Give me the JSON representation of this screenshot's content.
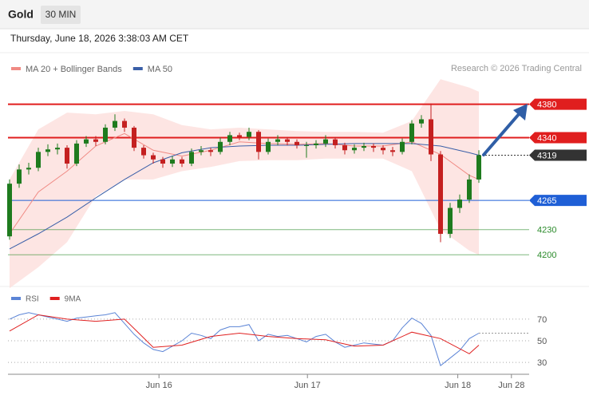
{
  "header": {
    "symbol": "Gold",
    "interval": "30 MIN",
    "timestamp": "Thursday, June 18, 2026 3:38:03 AM CET",
    "copyright": "Research © 2026 Trading Central"
  },
  "chart_data": [
    {
      "type": "candlestick",
      "x": [
        0,
        1,
        2,
        3,
        4,
        5,
        6,
        7,
        8,
        9,
        10,
        11,
        12,
        13,
        14,
        15,
        16,
        17,
        18,
        19,
        20,
        21,
        22,
        23,
        24,
        25,
        26,
        27,
        28,
        29,
        30,
        31,
        32,
        33,
        34,
        35,
        36,
        37,
        38,
        39,
        40,
        41,
        42,
        43,
        44,
        45,
        46,
        47,
        48,
        49
      ],
      "open": [
        4222,
        4285,
        4302,
        4304,
        4323,
        4326,
        4328,
        4309,
        4333,
        4338,
        4335,
        4352,
        4360,
        4352,
        4328,
        4319,
        4314,
        4309,
        4314,
        4309,
        4323,
        4325,
        4323,
        4335,
        4343,
        4341,
        4347,
        4323,
        4335,
        4338,
        4335,
        4331,
        4331,
        4333,
        4338,
        4331,
        4325,
        4328,
        4330,
        4328,
        4325,
        4323,
        4335,
        4357,
        4362,
        4320,
        4225,
        4256,
        4266,
        4290
      ],
      "high": [
        4290,
        4308,
        4310,
        4328,
        4332,
        4333,
        4331,
        4337,
        4342,
        4342,
        4356,
        4368,
        4363,
        4354,
        4331,
        4322,
        4317,
        4318,
        4317,
        4327,
        4330,
        4328,
        4340,
        4347,
        4346,
        4352,
        4349,
        4339,
        4343,
        4341,
        4338,
        4335,
        4337,
        4343,
        4341,
        4334,
        4332,
        4334,
        4333,
        4331,
        4329,
        4339,
        4361,
        4367,
        4381,
        4324,
        4262,
        4272,
        4296,
        4325
      ],
      "low": [
        4218,
        4280,
        4296,
        4300,
        4318,
        4320,
        4303,
        4306,
        4329,
        4330,
        4332,
        4348,
        4347,
        4324,
        4315,
        4309,
        4304,
        4305,
        4305,
        4306,
        4319,
        4318,
        4320,
        4331,
        4337,
        4337,
        4314,
        4320,
        4331,
        4331,
        4327,
        4316,
        4327,
        4329,
        4327,
        4320,
        4321,
        4324,
        4323,
        4320,
        4318,
        4320,
        4332,
        4352,
        4312,
        4215,
        4220,
        4250,
        4262,
        4286
      ],
      "close": [
        4285,
        4302,
        4304,
        4323,
        4326,
        4328,
        4309,
        4333,
        4338,
        4335,
        4352,
        4360,
        4352,
        4328,
        4319,
        4314,
        4309,
        4314,
        4309,
        4323,
        4325,
        4323,
        4335,
        4343,
        4341,
        4347,
        4323,
        4335,
        4338,
        4335,
        4331,
        4331,
        4333,
        4338,
        4331,
        4325,
        4328,
        4330,
        4328,
        4325,
        4323,
        4335,
        4357,
        4362,
        4320,
        4225,
        4256,
        4266,
        4290,
        4319
      ],
      "up_color": "#1e7b1e",
      "down_color": "#c42020",
      "xlim": [
        0,
        54
      ],
      "ylim": [
        4163,
        4414
      ],
      "series": [
        {
          "name": "MA 20 + Bollinger Bands",
          "color": "#f08a84",
          "band_color": "#fcdcda",
          "x": [
            0,
            3,
            6,
            9,
            12,
            15,
            18,
            21,
            24,
            27,
            30,
            33,
            36,
            39,
            42,
            45,
            48,
            49
          ],
          "values": [
            4225,
            4275,
            4300,
            4330,
            4345,
            4325,
            4318,
            4325,
            4335,
            4333,
            4332,
            4333,
            4330,
            4330,
            4335,
            4320,
            4295,
            4290
          ],
          "upper": [
            4290,
            4350,
            4370,
            4368,
            4372,
            4368,
            4355,
            4350,
            4352,
            4350,
            4348,
            4347,
            4347,
            4346,
            4360,
            4410,
            4400,
            4395
          ],
          "lower": [
            4160,
            4185,
            4215,
            4270,
            4290,
            4290,
            4300,
            4305,
            4312,
            4313,
            4313,
            4315,
            4315,
            4315,
            4300,
            4230,
            4205,
            4200
          ]
        },
        {
          "name": "MA 50",
          "color": "#3a5fa8",
          "x": [
            0,
            3,
            6,
            9,
            12,
            15,
            18,
            21,
            24,
            27,
            30,
            33,
            36,
            39,
            42,
            45,
            48,
            49
          ],
          "values": [
            4207,
            4225,
            4245,
            4268,
            4290,
            4310,
            4322,
            4328,
            4330,
            4331,
            4331,
            4332,
            4333,
            4333,
            4333,
            4330,
            4322,
            4319
          ]
        }
      ],
      "levels": [
        {
          "value": 4380,
          "color": "#e01e1e",
          "box": true,
          "line": "solid"
        },
        {
          "value": 4340,
          "color": "#e01e1e",
          "box": true,
          "line": "solid"
        },
        {
          "value": 4319,
          "color": "#333333",
          "box": true,
          "line": "dotted"
        },
        {
          "value": 4265,
          "color": "#1f5fd6",
          "box": true,
          "line": "solid"
        },
        {
          "value": 4230,
          "color": "#2a8a2a",
          "box": false,
          "line": "solid"
        },
        {
          "value": 4200,
          "color": "#2a8a2a",
          "box": false,
          "line": "solid"
        }
      ]
    },
    {
      "type": "line",
      "xlim": [
        0,
        54
      ],
      "ylim": [
        22,
        81
      ],
      "yticks": [
        70,
        50,
        30
      ],
      "grid": true,
      "xticks": [
        {
          "value": 15.6,
          "label": "Jun 16"
        },
        {
          "value": 31.1,
          "label": "Jun 17"
        },
        {
          "value": 46.8,
          "label": "Jun 18"
        },
        {
          "value": 52.4,
          "label": "Jun 28"
        }
      ],
      "series": [
        {
          "name": "RSI",
          "color": "#5b84d6",
          "x": [
            0,
            1,
            2,
            3,
            4,
            5,
            6,
            7,
            8,
            9,
            10,
            11,
            12,
            13,
            14,
            15,
            16,
            17,
            18,
            19,
            20,
            21,
            22,
            23,
            24,
            25,
            26,
            27,
            28,
            29,
            30,
            31,
            32,
            33,
            34,
            35,
            36,
            37,
            38,
            39,
            40,
            41,
            42,
            43,
            44,
            45,
            46,
            47,
            48,
            49
          ],
          "values": [
            70,
            74,
            76,
            74,
            72,
            70,
            68,
            71,
            72,
            73,
            74,
            76,
            66,
            56,
            48,
            42,
            40,
            45,
            50,
            57,
            55,
            52,
            60,
            63,
            63,
            65,
            50,
            56,
            54,
            55,
            52,
            49,
            54,
            56,
            49,
            44,
            46,
            48,
            47,
            46,
            50,
            62,
            71,
            66,
            55,
            27,
            34,
            41,
            52,
            57
          ]
        },
        {
          "name": "9MA",
          "color": "#e02020",
          "x": [
            0,
            3,
            6,
            9,
            12,
            15,
            18,
            21,
            24,
            27,
            30,
            33,
            36,
            39,
            42,
            45,
            48,
            49
          ],
          "values": [
            59,
            74,
            70,
            68,
            70,
            44,
            46,
            54,
            57,
            54,
            52,
            51,
            45,
            46,
            58,
            52,
            38,
            46
          ]
        }
      ]
    }
  ]
}
